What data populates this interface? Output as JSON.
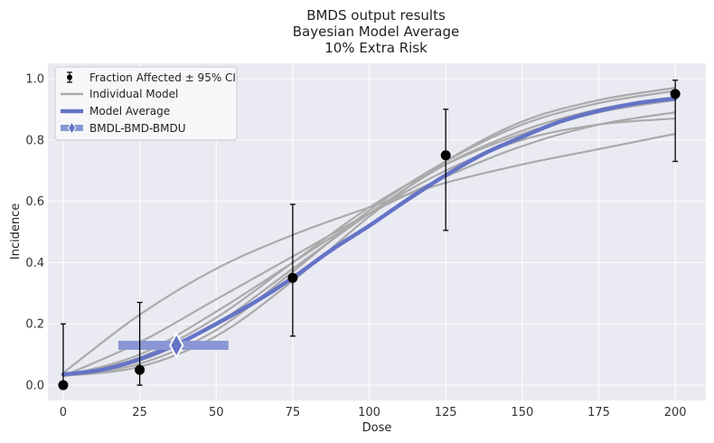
{
  "chart_data": {
    "type": "line",
    "title": [
      "BMDS output results",
      "Bayesian Model Average",
      "10% Extra Risk"
    ],
    "xlabel": "Dose",
    "ylabel": "Incidence",
    "xlim": [
      -5,
      210
    ],
    "ylim": [
      -0.05,
      1.05
    ],
    "x_ticks": [
      0,
      25,
      50,
      75,
      100,
      125,
      150,
      175,
      200
    ],
    "y_ticks": [
      0.0,
      0.2,
      0.4,
      0.6,
      0.8,
      1.0
    ],
    "x_tick_labels": [
      "0",
      "25",
      "50",
      "75",
      "100",
      "125",
      "150",
      "175",
      "200"
    ],
    "y_tick_labels": [
      "0.0",
      "0.2",
      "0.4",
      "0.6",
      "0.8",
      "1.0"
    ],
    "grid": true,
    "legend_position": "top-left",
    "legend": [
      "Fraction Affected ± 95% CI",
      "Individual Model",
      "Model Average",
      "BMDL-BMD-BMDU"
    ],
    "observed": {
      "name": "Fraction Affected ± 95% CI",
      "dose": [
        0,
        25,
        75,
        125,
        200
      ],
      "fraction": [
        0.0,
        0.05,
        0.35,
        0.75,
        0.95
      ],
      "ci_low": [
        0.0,
        0.0,
        0.16,
        0.505,
        0.73
      ],
      "ci_high": [
        0.2,
        0.27,
        0.59,
        0.9,
        0.995
      ]
    },
    "individual_models": [
      {
        "x": [
          0,
          25,
          50,
          75,
          100,
          125,
          150,
          175,
          200
        ],
        "y": [
          0.03,
          0.14,
          0.28,
          0.42,
          0.56,
          0.68,
          0.78,
          0.85,
          0.89
        ]
      },
      {
        "x": [
          0,
          25,
          50,
          75,
          100,
          125,
          150,
          175,
          200
        ],
        "y": [
          0.03,
          0.09,
          0.22,
          0.4,
          0.58,
          0.72,
          0.82,
          0.89,
          0.93
        ]
      },
      {
        "x": [
          0,
          25,
          50,
          75,
          100,
          125,
          150,
          175,
          200
        ],
        "y": [
          0.03,
          0.07,
          0.18,
          0.37,
          0.57,
          0.73,
          0.85,
          0.92,
          0.96
        ]
      },
      {
        "x": [
          0,
          25,
          50,
          75,
          100,
          125,
          150,
          175,
          200
        ],
        "y": [
          0.03,
          0.06,
          0.16,
          0.34,
          0.55,
          0.73,
          0.86,
          0.93,
          0.97
        ]
      },
      {
        "x": [
          0,
          25,
          50,
          75,
          100,
          125,
          150,
          175,
          200
        ],
        "y": [
          0.04,
          0.23,
          0.38,
          0.49,
          0.58,
          0.66,
          0.72,
          0.77,
          0.82
        ]
      },
      {
        "x": [
          0,
          25,
          50,
          75,
          100,
          125,
          150,
          175,
          200
        ],
        "y": [
          0.03,
          0.1,
          0.24,
          0.4,
          0.56,
          0.7,
          0.8,
          0.85,
          0.87
        ]
      },
      {
        "x": [
          0,
          25,
          50,
          75,
          100,
          125,
          150,
          175,
          200
        ],
        "y": [
          0.03,
          0.08,
          0.2,
          0.38,
          0.56,
          0.72,
          0.83,
          0.9,
          0.94
        ]
      }
    ],
    "model_average": {
      "name": "Model Average",
      "x": [
        0,
        12.5,
        25,
        37.5,
        50,
        62.5,
        75,
        87.5,
        100,
        112.5,
        125,
        137.5,
        150,
        162.5,
        175,
        187.5,
        200
      ],
      "y": [
        0.035,
        0.05,
        0.085,
        0.135,
        0.2,
        0.27,
        0.35,
        0.44,
        0.52,
        0.605,
        0.685,
        0.755,
        0.81,
        0.86,
        0.895,
        0.92,
        0.935
      ]
    },
    "bmd": {
      "name": "BMDL-BMD-BMDU",
      "bmdl": 18,
      "bmd": 37,
      "bmdu": 54,
      "y": 0.13
    },
    "colors": {
      "background": "#eaeaf2",
      "grid": "#ffffff",
      "individual": "#aaaaaa",
      "model_average": "#6573c6",
      "bmd_band": "#8a96d4",
      "points": "#000000"
    }
  }
}
